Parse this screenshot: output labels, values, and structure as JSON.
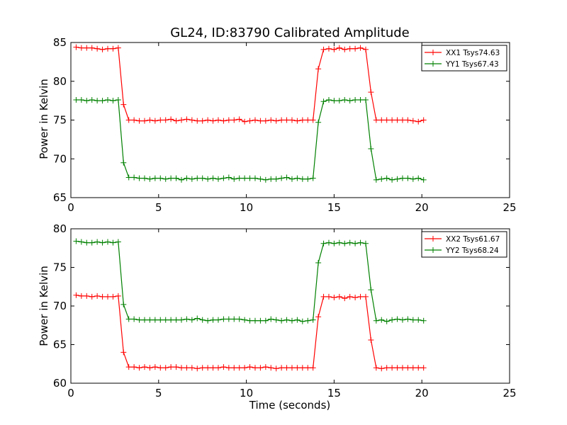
{
  "chart_data": [
    {
      "type": "line",
      "title": "GL24, ID:83790 Calibrated Amplitude",
      "xlabel": "",
      "ylabel": "Power in Kelvin",
      "xlim": [
        0,
        25
      ],
      "ylim": [
        65,
        85
      ],
      "xticks": [
        "0",
        "5",
        "10",
        "15",
        "20",
        "25"
      ],
      "yticks": [
        "65",
        "70",
        "75",
        "80",
        "85"
      ],
      "grid": false,
      "legend_position": "top-right",
      "x": [
        0.3,
        0.6,
        0.9,
        1.2,
        1.5,
        1.8,
        2.1,
        2.4,
        2.7,
        3.0,
        3.3,
        3.6,
        3.9,
        4.2,
        4.5,
        4.8,
        5.1,
        5.4,
        5.7,
        6.0,
        6.3,
        6.6,
        6.9,
        7.2,
        7.5,
        7.8,
        8.1,
        8.4,
        8.7,
        9.0,
        9.3,
        9.6,
        9.9,
        10.2,
        10.5,
        10.8,
        11.1,
        11.4,
        11.7,
        12.0,
        12.3,
        12.6,
        12.9,
        13.2,
        13.5,
        13.8,
        14.1,
        14.4,
        14.7,
        15.0,
        15.3,
        15.6,
        15.9,
        16.2,
        16.5,
        16.8,
        17.1,
        17.4,
        17.7,
        18.0,
        18.3,
        18.6,
        18.9,
        19.2,
        19.5,
        19.8,
        20.1
      ],
      "series": [
        {
          "name": "XX1 Tsys74.63",
          "color": "#ff0000",
          "values": [
            84.4,
            84.3,
            84.3,
            84.3,
            84.2,
            84.1,
            84.2,
            84.2,
            84.3,
            77.0,
            75.0,
            75.0,
            74.9,
            74.9,
            75.0,
            74.9,
            75.0,
            75.0,
            75.1,
            74.9,
            75.0,
            75.1,
            75.0,
            74.9,
            74.9,
            75.0,
            74.9,
            75.0,
            74.9,
            75.0,
            75.0,
            75.1,
            74.8,
            74.9,
            75.0,
            74.9,
            74.9,
            75.0,
            74.9,
            75.0,
            75.0,
            75.0,
            74.9,
            75.0,
            75.0,
            75.0,
            81.6,
            84.1,
            84.2,
            84.1,
            84.3,
            84.1,
            84.2,
            84.2,
            84.3,
            84.1,
            78.6,
            75.0,
            75.0,
            75.0,
            75.0,
            75.0,
            75.0,
            75.0,
            74.9,
            74.8,
            75.0
          ]
        },
        {
          "name": "YY1 Tsys67.43",
          "color": "#008000",
          "values": [
            77.6,
            77.6,
            77.5,
            77.6,
            77.5,
            77.5,
            77.6,
            77.5,
            77.6,
            69.5,
            67.6,
            67.6,
            67.5,
            67.5,
            67.4,
            67.5,
            67.5,
            67.4,
            67.5,
            67.5,
            67.3,
            67.5,
            67.4,
            67.5,
            67.5,
            67.4,
            67.5,
            67.4,
            67.5,
            67.6,
            67.4,
            67.5,
            67.5,
            67.5,
            67.5,
            67.4,
            67.3,
            67.4,
            67.4,
            67.5,
            67.6,
            67.4,
            67.5,
            67.4,
            67.4,
            67.5,
            74.7,
            77.4,
            77.6,
            77.5,
            77.5,
            77.6,
            77.5,
            77.6,
            77.6,
            77.6,
            71.3,
            67.3,
            67.4,
            67.5,
            67.3,
            67.4,
            67.5,
            67.5,
            67.4,
            67.5,
            67.3
          ]
        }
      ]
    },
    {
      "type": "line",
      "title": "",
      "xlabel": "Time (seconds)",
      "ylabel": "Power in Kelvin",
      "xlim": [
        0,
        25
      ],
      "ylim": [
        60,
        80
      ],
      "xticks": [
        "0",
        "5",
        "10",
        "15",
        "20",
        "25"
      ],
      "yticks": [
        "60",
        "65",
        "70",
        "75",
        "80"
      ],
      "grid": false,
      "legend_position": "top-right",
      "x": [
        0.3,
        0.6,
        0.9,
        1.2,
        1.5,
        1.8,
        2.1,
        2.4,
        2.7,
        3.0,
        3.3,
        3.6,
        3.9,
        4.2,
        4.5,
        4.8,
        5.1,
        5.4,
        5.7,
        6.0,
        6.3,
        6.6,
        6.9,
        7.2,
        7.5,
        7.8,
        8.1,
        8.4,
        8.7,
        9.0,
        9.3,
        9.6,
        9.9,
        10.2,
        10.5,
        10.8,
        11.1,
        11.4,
        11.7,
        12.0,
        12.3,
        12.6,
        12.9,
        13.2,
        13.5,
        13.8,
        14.1,
        14.4,
        14.7,
        15.0,
        15.3,
        15.6,
        15.9,
        16.2,
        16.5,
        16.8,
        17.1,
        17.4,
        17.7,
        18.0,
        18.3,
        18.6,
        18.9,
        19.2,
        19.5,
        19.8,
        20.1
      ],
      "series": [
        {
          "name": "XX2 Tsys61.67",
          "color": "#ff0000",
          "values": [
            71.4,
            71.3,
            71.3,
            71.2,
            71.3,
            71.2,
            71.2,
            71.2,
            71.3,
            64.0,
            62.1,
            62.1,
            62.0,
            62.1,
            62.0,
            62.1,
            62.0,
            62.0,
            62.1,
            62.1,
            62.0,
            62.0,
            62.0,
            61.9,
            62.0,
            62.0,
            62.0,
            62.0,
            62.1,
            62.0,
            62.0,
            62.0,
            62.0,
            62.1,
            62.0,
            62.0,
            62.1,
            62.0,
            61.9,
            62.0,
            62.0,
            62.0,
            62.0,
            62.0,
            62.0,
            62.0,
            68.6,
            71.2,
            71.2,
            71.1,
            71.2,
            71.0,
            71.2,
            71.1,
            71.2,
            71.2,
            65.6,
            62.0,
            61.9,
            62.0,
            62.0,
            62.0,
            62.0,
            62.0,
            62.0,
            62.0,
            62.0
          ]
        },
        {
          "name": "YY2 Tsys68.24",
          "color": "#008000",
          "values": [
            78.4,
            78.3,
            78.2,
            78.2,
            78.3,
            78.2,
            78.3,
            78.2,
            78.3,
            70.2,
            68.3,
            68.3,
            68.2,
            68.2,
            68.2,
            68.2,
            68.2,
            68.2,
            68.2,
            68.2,
            68.2,
            68.3,
            68.2,
            68.4,
            68.2,
            68.1,
            68.2,
            68.2,
            68.3,
            68.3,
            68.3,
            68.3,
            68.2,
            68.1,
            68.1,
            68.1,
            68.1,
            68.3,
            68.2,
            68.1,
            68.2,
            68.1,
            68.2,
            68.0,
            68.1,
            68.2,
            75.6,
            78.1,
            78.2,
            78.1,
            78.2,
            78.1,
            78.2,
            78.1,
            78.2,
            78.1,
            72.1,
            68.1,
            68.2,
            68.0,
            68.2,
            68.3,
            68.2,
            68.3,
            68.2,
            68.2,
            68.1
          ]
        }
      ]
    }
  ]
}
